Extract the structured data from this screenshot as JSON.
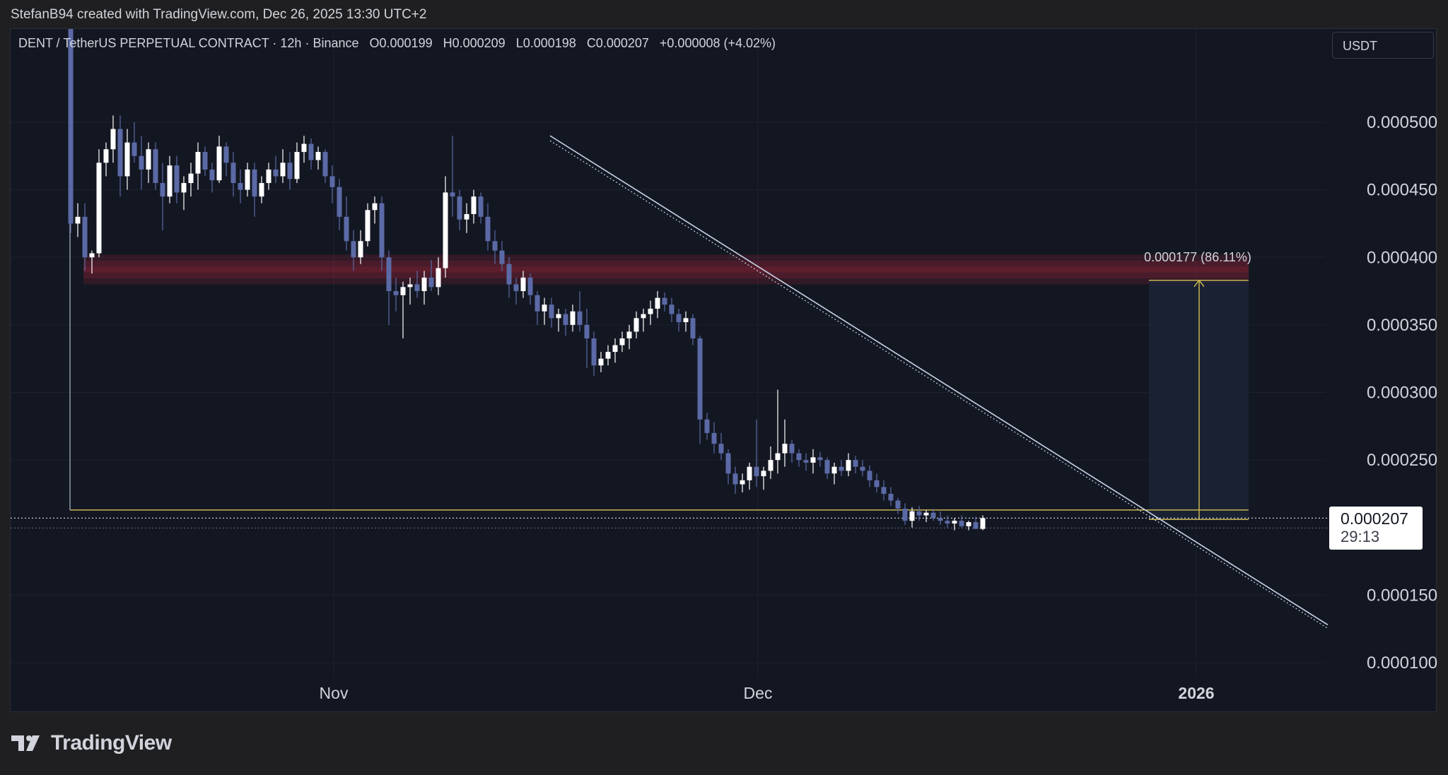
{
  "caption": "StefanB94 created with TradingView.com, Dec 26, 2025 13:30 UTC+2",
  "brand": {
    "name": "TradingView",
    "logo_icon": "tradingview-logo-icon"
  },
  "header": {
    "symbol": "DENT / TetherUS PERPETUAL CONTRACT · 12h · Binance",
    "open": "O0.000199",
    "high": "H0.000209",
    "low": "L0.000198",
    "close": "C0.000207",
    "change": "+0.000008 (+4.02%)"
  },
  "unit_select": {
    "value": "USDT"
  },
  "price_label": {
    "value": "0.000207",
    "countdown": "29:13"
  },
  "colors": {
    "background": "#131722",
    "grid": "#1e2230",
    "up_candle": "#ffffff",
    "down_candle": "#5b6aa6",
    "resistance_zone": "#c2273d",
    "trendline": "#c9d4e8",
    "measure": "#c8b450",
    "axis_text": "#d1d4dc"
  },
  "chart_data": {
    "type": "candlestick",
    "symbol": "DENTUSDT.P",
    "timeframe": "12h",
    "y_axis": {
      "ticks": [
        "0.000500",
        "0.000450",
        "0.000400",
        "0.000350",
        "0.000300",
        "0.000250",
        "0.000150",
        "0.000100"
      ],
      "ylim": [
        8.5e-05,
        0.00057
      ]
    },
    "x_axis": {
      "ticks": [
        "Nov",
        "Dec",
        "2026"
      ],
      "tick_bars": [
        42,
        102,
        164
      ]
    },
    "last_price": 0.000207,
    "resistance_zone": [
      0.00038,
      0.000402
    ],
    "measure": {
      "label": "0.000177 (86.11%)",
      "from": 0.000206,
      "to": 0.000383
    },
    "trendline": {
      "from": [
        0.00049,
        58
      ],
      "to": [
        0.000128,
        178
      ]
    },
    "support_level": 0.000213,
    "candles": [
      [
        0.0006,
        0.00062,
        0.000418,
        0.000425
      ],
      [
        0.000425,
        0.00044,
        0.000415,
        0.00043
      ],
      [
        0.00043,
        0.00044,
        0.00039,
        0.0004
      ],
      [
        0.0004,
        0.000405,
        0.000388,
        0.000403
      ],
      [
        0.000403,
        0.00048,
        0.0004,
        0.00047
      ],
      [
        0.00047,
        0.000485,
        0.00046,
        0.00048
      ],
      [
        0.00048,
        0.000505,
        0.00047,
        0.000495
      ],
      [
        0.000495,
        0.000505,
        0.000445,
        0.00046
      ],
      [
        0.00046,
        0.000495,
        0.00045,
        0.000485
      ],
      [
        0.000485,
        0.0005,
        0.00047,
        0.000475
      ],
      [
        0.000475,
        0.00049,
        0.00045,
        0.000465
      ],
      [
        0.000465,
        0.000485,
        0.000455,
        0.00048
      ],
      [
        0.00048,
        0.000485,
        0.00045,
        0.000455
      ],
      [
        0.000455,
        0.00047,
        0.00042,
        0.000445
      ],
      [
        0.000445,
        0.000475,
        0.00044,
        0.000468
      ],
      [
        0.000468,
        0.000475,
        0.00044,
        0.000448
      ],
      [
        0.000448,
        0.00046,
        0.000435,
        0.000455
      ],
      [
        0.000455,
        0.00047,
        0.000445,
        0.000462
      ],
      [
        0.000462,
        0.000485,
        0.00045,
        0.000478
      ],
      [
        0.000478,
        0.000482,
        0.00046,
        0.000465
      ],
      [
        0.000465,
        0.00047,
        0.000448,
        0.000457
      ],
      [
        0.000457,
        0.00049,
        0.000455,
        0.000482
      ],
      [
        0.000482,
        0.000485,
        0.00046,
        0.00047
      ],
      [
        0.00047,
        0.000478,
        0.000445,
        0.000455
      ],
      [
        0.000455,
        0.000465,
        0.00044,
        0.00045
      ],
      [
        0.00045,
        0.00047,
        0.000445,
        0.000465
      ],
      [
        0.000465,
        0.00047,
        0.00043,
        0.000445
      ],
      [
        0.000445,
        0.00046,
        0.00044,
        0.000455
      ],
      [
        0.000455,
        0.00047,
        0.00045,
        0.000465
      ],
      [
        0.000465,
        0.000475,
        0.000455,
        0.00046
      ],
      [
        0.00046,
        0.00048,
        0.000455,
        0.00047
      ],
      [
        0.00047,
        0.000478,
        0.00045,
        0.000458
      ],
      [
        0.000458,
        0.000485,
        0.000455,
        0.000478
      ],
      [
        0.000478,
        0.00049,
        0.00047,
        0.000484
      ],
      [
        0.000484,
        0.000488,
        0.000465,
        0.000472
      ],
      [
        0.000472,
        0.000482,
        0.000465,
        0.000478
      ],
      [
        0.000478,
        0.00048,
        0.000455,
        0.00046
      ],
      [
        0.00046,
        0.000468,
        0.00044,
        0.000452
      ],
      [
        0.000452,
        0.000458,
        0.00042,
        0.00043
      ],
      [
        0.00043,
        0.000445,
        0.000405,
        0.000412
      ],
      [
        0.000412,
        0.00042,
        0.00039,
        0.0004
      ],
      [
        0.0004,
        0.00042,
        0.000395,
        0.000412
      ],
      [
        0.000412,
        0.00044,
        0.000408,
        0.000435
      ],
      [
        0.000435,
        0.000445,
        0.000425,
        0.00044
      ],
      [
        0.00044,
        0.000445,
        0.00039,
        0.0004
      ],
      [
        0.0004,
        0.000405,
        0.00035,
        0.000375
      ],
      [
        0.000375,
        0.000385,
        0.00036,
        0.000372
      ],
      [
        0.000372,
        0.000382,
        0.00034,
        0.000378
      ],
      [
        0.000378,
        0.000385,
        0.000365,
        0.00038
      ],
      [
        0.00038,
        0.00039,
        0.00037,
        0.000375
      ],
      [
        0.000375,
        0.00039,
        0.000365,
        0.000385
      ],
      [
        0.000385,
        0.000398,
        0.000375,
        0.000378
      ],
      [
        0.000378,
        0.0004,
        0.000372,
        0.000392
      ],
      [
        0.000392,
        0.00046,
        0.000385,
        0.000448
      ],
      [
        0.000448,
        0.00049,
        0.00043,
        0.000445
      ],
      [
        0.000445,
        0.00045,
        0.00042,
        0.000428
      ],
      [
        0.000428,
        0.00044,
        0.000418,
        0.000432
      ],
      [
        0.000432,
        0.00045,
        0.000425,
        0.000445
      ],
      [
        0.000445,
        0.000448,
        0.000425,
        0.00043
      ],
      [
        0.00043,
        0.00044,
        0.000405,
        0.000412
      ],
      [
        0.000412,
        0.00042,
        0.000395,
        0.000405
      ],
      [
        0.000405,
        0.000412,
        0.00039,
        0.000395
      ],
      [
        0.000395,
        0.0004,
        0.00037,
        0.00038
      ],
      [
        0.00038,
        0.000385,
        0.000365,
        0.000375
      ],
      [
        0.000375,
        0.00039,
        0.00037,
        0.000385
      ],
      [
        0.000385,
        0.000388,
        0.000365,
        0.000372
      ],
      [
        0.000372,
        0.000375,
        0.00035,
        0.00036
      ],
      [
        0.00036,
        0.00037,
        0.00035,
        0.000365
      ],
      [
        0.000365,
        0.00037,
        0.000348,
        0.000355
      ],
      [
        0.000355,
        0.000362,
        0.000345,
        0.000358
      ],
      [
        0.000358,
        0.000362,
        0.000342,
        0.00035
      ],
      [
        0.00035,
        0.000365,
        0.000345,
        0.00036
      ],
      [
        0.00036,
        0.000375,
        0.000345,
        0.00035
      ],
      [
        0.00035,
        0.000362,
        0.000318,
        0.00034
      ],
      [
        0.00034,
        0.000345,
        0.000312,
        0.00032
      ],
      [
        0.00032,
        0.00033,
        0.000315,
        0.000325
      ],
      [
        0.000325,
        0.000335,
        0.00032,
        0.00033
      ],
      [
        0.00033,
        0.00034,
        0.000322,
        0.000335
      ],
      [
        0.000335,
        0.000345,
        0.00033,
        0.00034
      ],
      [
        0.00034,
        0.00035,
        0.000332,
        0.000345
      ],
      [
        0.000345,
        0.00036,
        0.00034,
        0.000355
      ],
      [
        0.000355,
        0.000362,
        0.000345,
        0.000358
      ],
      [
        0.000358,
        0.000368,
        0.00035,
        0.000362
      ],
      [
        0.000362,
        0.000375,
        0.000355,
        0.00037
      ],
      [
        0.00037,
        0.000374,
        0.00036,
        0.000365
      ],
      [
        0.000365,
        0.00037,
        0.000352,
        0.000358
      ],
      [
        0.000358,
        0.000362,
        0.000345,
        0.000352
      ],
      [
        0.000352,
        0.00036,
        0.000345,
        0.000355
      ],
      [
        0.000355,
        0.000358,
        0.000335,
        0.00034
      ],
      [
        0.00034,
        0.000342,
        0.000262,
        0.00028
      ],
      [
        0.00028,
        0.000285,
        0.000265,
        0.00027
      ],
      [
        0.00027,
        0.000278,
        0.000255,
        0.000262
      ],
      [
        0.000262,
        0.00027,
        0.00025,
        0.000255
      ],
      [
        0.000255,
        0.000258,
        0.000232,
        0.00024
      ],
      [
        0.00024,
        0.000245,
        0.000225,
        0.000232
      ],
      [
        0.000232,
        0.00024,
        0.000226,
        0.000235
      ],
      [
        0.000235,
        0.000248,
        0.000228,
        0.000245
      ],
      [
        0.000245,
        0.00028,
        0.00023,
        0.000238
      ],
      [
        0.000238,
        0.000245,
        0.000228,
        0.000242
      ],
      [
        0.000242,
        0.00026,
        0.000236,
        0.00025
      ],
      [
        0.00025,
        0.000302,
        0.00024,
        0.000255
      ],
      [
        0.000255,
        0.00028,
        0.000245,
        0.000262
      ],
      [
        0.000262,
        0.000265,
        0.000248,
        0.000255
      ],
      [
        0.000255,
        0.000258,
        0.000245,
        0.00025
      ],
      [
        0.00025,
        0.000255,
        0.000242,
        0.000248
      ],
      [
        0.000248,
        0.000258,
        0.00024,
        0.000252
      ],
      [
        0.000252,
        0.000256,
        0.000245,
        0.00025
      ],
      [
        0.00025,
        0.000252,
        0.000236,
        0.00024
      ],
      [
        0.00024,
        0.000248,
        0.000232,
        0.000245
      ],
      [
        0.000245,
        0.00025,
        0.000238,
        0.000242
      ],
      [
        0.000242,
        0.000255,
        0.000238,
        0.00025
      ],
      [
        0.00025,
        0.000253,
        0.00024,
        0.000245
      ],
      [
        0.000245,
        0.00025,
        0.000238,
        0.000242
      ],
      [
        0.000242,
        0.000246,
        0.00023,
        0.000235
      ],
      [
        0.000235,
        0.00024,
        0.000226,
        0.00023
      ],
      [
        0.00023,
        0.000235,
        0.00022,
        0.000225
      ],
      [
        0.000225,
        0.00023,
        0.000216,
        0.00022
      ],
      [
        0.00022,
        0.000222,
        0.00021,
        0.000214
      ],
      [
        0.000214,
        0.000218,
        0.000202,
        0.000205
      ],
      [
        0.000205,
        0.000215,
        0.0002,
        0.000212
      ],
      [
        0.000212,
        0.000216,
        0.000205,
        0.000209
      ],
      [
        0.000209,
        0.000213,
        0.000204,
        0.000211
      ],
      [
        0.000211,
        0.000214,
        0.000205,
        0.000207
      ],
      [
        0.000207,
        0.000212,
        0.000202,
        0.000205
      ],
      [
        0.000205,
        0.000209,
        0.0002,
        0.000203
      ],
      [
        0.000203,
        0.000207,
        0.000198,
        0.000205
      ],
      [
        0.000205,
        0.000209,
        0.0002,
        0.000201
      ],
      [
        0.000201,
        0.000205,
        0.000198,
        0.000204
      ],
      [
        0.000204,
        0.000208,
        0.000199,
        0.000199
      ],
      [
        0.000199,
        0.000209,
        0.000198,
        0.000207
      ]
    ]
  }
}
